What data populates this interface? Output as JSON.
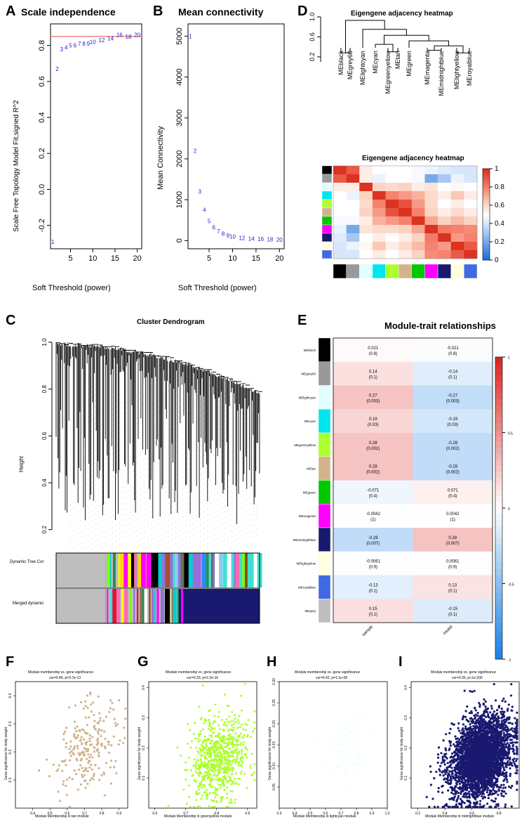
{
  "panels": {
    "A": {
      "label": "A",
      "title": "Scale independence",
      "xlabel": "Soft Threshold (power)",
      "ylabel": "Scale Free Topology Model Fit,signed R^2"
    },
    "B": {
      "label": "B",
      "title": "Mean connectivity",
      "xlabel": "Soft Threshold (power)",
      "ylabel": "Mean Connectivity"
    },
    "C": {
      "label": "C",
      "title": "Cluster Dendrogram",
      "ylabel": "Height",
      "row1": "Dynamic Tree Cut",
      "row2": "Merged dynamic"
    },
    "D": {
      "label": "D",
      "title_dendro": "Eigengene adjacency heatmap",
      "title_heat": "Eigengene adjacency heatmap"
    },
    "E": {
      "label": "E",
      "title": "Module-trait relationships"
    },
    "F": {
      "label": "F",
      "title": "Module membership vs. gene significance",
      "subtitle": "cor=0.46, p=3.7e-13",
      "xlabel": "Module Membership in tan module",
      "ylabel": "Gene significance for body weight"
    },
    "G": {
      "label": "G",
      "title": "Module membership vs. gene significance",
      "subtitle": "cor=0.33, p=2.2e-16",
      "xlabel": "Module Membership in greenyellow module",
      "ylabel": "Gene significance for body weight"
    },
    "H": {
      "label": "H",
      "title": "Module membership vs. gene significance",
      "subtitle": "cor=0.42, p=1.1e-08",
      "xlabel": "Module Membership in lightcyan module",
      "ylabel": "Gene significance for body weight"
    },
    "I": {
      "label": "I",
      "title": "Module membership vs. gene significance",
      "subtitle": "cor=0.35, p<1e-200",
      "xlabel": "Module Membership in midnightblue module",
      "ylabel": "Gene significance for body weight"
    }
  },
  "chart_data": [
    {
      "id": "A",
      "type": "scatter",
      "title": "Scale independence",
      "xlabel": "Soft Threshold (power)",
      "ylabel": "Scale Free Topology Model Fit,signed R^2",
      "x": [
        1,
        2,
        3,
        4,
        5,
        6,
        7,
        8,
        9,
        10,
        12,
        14,
        16,
        18,
        20
      ],
      "y": [
        -0.29,
        0.67,
        0.78,
        0.79,
        0.8,
        0.8,
        0.81,
        0.81,
        0.81,
        0.82,
        0.83,
        0.84,
        0.86,
        0.85,
        0.86
      ],
      "point_labels": [
        "1",
        "2",
        "3",
        "4",
        "5",
        "6",
        "7",
        "8",
        "9",
        "10",
        "12",
        "14",
        "16",
        "18",
        "20"
      ],
      "hline": 0.85,
      "xticks": [
        5,
        10,
        15,
        20
      ],
      "yticks": [
        -0.2,
        0.0,
        0.2,
        0.4,
        0.6,
        0.8
      ],
      "xlim": [
        0.5,
        21
      ],
      "ylim": [
        -0.33,
        0.92
      ]
    },
    {
      "id": "B",
      "type": "scatter",
      "title": "Mean connectivity",
      "xlabel": "Soft Threshold (power)",
      "ylabel": "Mean Connectivity",
      "x": [
        1,
        2,
        3,
        4,
        5,
        6,
        7,
        8,
        9,
        10,
        12,
        14,
        16,
        18,
        20
      ],
      "y": [
        5000,
        2200,
        1200,
        750,
        480,
        320,
        230,
        170,
        130,
        100,
        70,
        50,
        38,
        30,
        25
      ],
      "point_labels": [
        "1",
        "2",
        "3",
        "4",
        "5",
        "6",
        "7",
        "8",
        "9",
        "10",
        "12",
        "14",
        "16",
        "18",
        "20"
      ],
      "xticks": [
        5,
        10,
        15,
        20
      ],
      "yticks": [
        0,
        1000,
        2000,
        3000,
        4000,
        5000
      ],
      "xlim": [
        0.5,
        21
      ],
      "ylim": [
        -200,
        5300
      ]
    },
    {
      "id": "D_dendro",
      "type": "dendrogram",
      "title": "Eigengene adjacency heatmap",
      "leaves": [
        "MEblack",
        "MEgrey60",
        "MElightcyan",
        "MEcyan",
        "MEgreenyellow",
        "MEtan",
        "MEgreen",
        "MEmagenta",
        "MEmidnightblue",
        "MElightyellow",
        "MEroyalblue"
      ],
      "yticks": [
        "0.2",
        "0.6",
        "1.0"
      ]
    },
    {
      "id": "D_heat",
      "type": "heatmap",
      "title": "Eigengene adjacency heatmap",
      "colors": [
        "#000000",
        "#999999",
        "#e0ffff",
        "#00e5ee",
        "#adff2f",
        "#d2b48c",
        "#00c800",
        "#ff00ff",
        "#191970",
        "#ffffe0",
        "#4169e1"
      ],
      "matrix": [
        [
          1.0,
          0.9,
          0.55,
          0.5,
          0.5,
          0.5,
          0.48,
          0.45,
          0.42,
          0.4,
          0.4
        ],
        [
          0.9,
          1.0,
          0.55,
          0.45,
          0.5,
          0.5,
          0.48,
          0.2,
          0.3,
          0.45,
          0.4
        ],
        [
          0.55,
          0.55,
          1.0,
          0.62,
          0.6,
          0.62,
          0.55,
          0.58,
          0.5,
          0.52,
          0.5
        ],
        [
          0.5,
          0.45,
          0.62,
          1.0,
          0.8,
          0.75,
          0.7,
          0.6,
          0.55,
          0.65,
          0.55
        ],
        [
          0.5,
          0.5,
          0.6,
          0.8,
          1.0,
          0.92,
          0.75,
          0.6,
          0.5,
          0.55,
          0.5
        ],
        [
          0.5,
          0.5,
          0.62,
          0.75,
          0.92,
          1.0,
          0.8,
          0.62,
          0.55,
          0.6,
          0.55
        ],
        [
          0.48,
          0.48,
          0.55,
          0.7,
          0.75,
          0.8,
          1.0,
          0.72,
          0.62,
          0.68,
          0.62
        ],
        [
          0.45,
          0.2,
          0.58,
          0.6,
          0.6,
          0.62,
          0.72,
          1.0,
          0.82,
          0.8,
          0.78
        ],
        [
          0.42,
          0.3,
          0.5,
          0.55,
          0.5,
          0.55,
          0.62,
          0.82,
          1.0,
          0.75,
          0.8
        ],
        [
          0.4,
          0.45,
          0.52,
          0.65,
          0.55,
          0.6,
          0.68,
          0.8,
          0.75,
          1.0,
          0.9
        ],
        [
          0.4,
          0.4,
          0.5,
          0.55,
          0.5,
          0.55,
          0.62,
          0.78,
          0.8,
          0.9,
          1.0
        ]
      ],
      "colorbar_ticks": [
        "0",
        "0.2",
        "0.4",
        "0.6",
        "0.8",
        "1"
      ]
    },
    {
      "id": "C",
      "type": "dendrogram",
      "title": "Cluster Dendrogram",
      "ylabel": "Height",
      "yticks": [
        "0.2",
        "0.4",
        "0.6",
        "0.8",
        "1.0"
      ],
      "rows": [
        "Dynamic Tree Cut",
        "Merged dynamic"
      ]
    },
    {
      "id": "E",
      "type": "heatmap",
      "title": "Module-trait relationships",
      "rows": [
        "MEblack",
        "MEgrey60",
        "MElightcyan",
        "MEcyan",
        "MEgreenyellow",
        "MEtan",
        "MEgreen",
        "MEmagenta",
        "MEmidnightblue",
        "MElightyellow",
        "MEroyalblue",
        "MEgrey"
      ],
      "row_colors": [
        "#000000",
        "#999999",
        "#e0ffff",
        "#00e5ee",
        "#adff2f",
        "#d2b48c",
        "#00c800",
        "#ff00ff",
        "#191970",
        "#ffffe0",
        "#4169e1",
        "#bebebe"
      ],
      "columns": [
        "sample",
        "model"
      ],
      "values": [
        [
          0.021,
          -0.021
        ],
        [
          0.14,
          -0.14
        ],
        [
          0.27,
          -0.27
        ],
        [
          0.19,
          -0.19
        ],
        [
          0.28,
          -0.28
        ],
        [
          0.28,
          -0.28
        ],
        [
          -0.071,
          0.071
        ],
        [
          -0.0042,
          0.0042
        ],
        [
          -0.28,
          0.28
        ],
        [
          -0.0061,
          0.0061
        ],
        [
          -0.13,
          0.13
        ],
        [
          0.15,
          -0.15
        ]
      ],
      "pvalues": [
        [
          "(0.8)",
          "(0.8)"
        ],
        [
          "(0.1)",
          "(0.1)"
        ],
        [
          "(0.003)",
          "(0.003)"
        ],
        [
          "(0.03)",
          "(0.03)"
        ],
        [
          "(0.002)",
          "(0.002)"
        ],
        [
          "(0.002)",
          "(0.002)"
        ],
        [
          "(0.4)",
          "(0.4)"
        ],
        [
          "(1)",
          "(1)"
        ],
        [
          "(0.007)",
          "(0.007)"
        ],
        [
          "(0.9)",
          "(0.9)"
        ],
        [
          "(0.1)",
          "(0.1)"
        ],
        [
          "(0.1)",
          "(0.1)"
        ]
      ],
      "colorbar_ticks": [
        "1",
        "0.5",
        "0",
        "-0.5",
        "-1"
      ]
    },
    {
      "id": "F",
      "type": "scatter",
      "color": "#d2b48c",
      "n": 230,
      "xlim": [
        0.3,
        0.95
      ],
      "ylim": [
        0,
        0.45
      ],
      "cor": 0.46,
      "xticks": [
        "0.4",
        "0.5",
        "0.6",
        "0.7",
        "0.8",
        "0.9"
      ],
      "yticks": [
        "0.1",
        "0.2",
        "0.3",
        "0.4"
      ]
    },
    {
      "id": "G",
      "type": "scatter",
      "color": "#adff2f",
      "n": 750,
      "xlim": [
        0.58,
        0.93
      ],
      "ylim": [
        0,
        0.42
      ],
      "cor": 0.33,
      "xticks": [
        "0.6",
        "0.7",
        "0.8",
        "0.9"
      ],
      "yticks": [
        "0.1",
        "0.2",
        "0.3",
        "0.4"
      ]
    },
    {
      "id": "H",
      "type": "scatter",
      "color": "#e0ffff",
      "n": 120,
      "xlim": [
        0.3,
        1.0
      ],
      "ylim": [
        0,
        0.3
      ],
      "cor": 0.42,
      "xticks": [
        "0.3",
        "0.4",
        "0.5",
        "0.6",
        "0.7",
        "0.8",
        "0.9",
        "1.0"
      ],
      "yticks": [
        "0.05",
        "0.10",
        "0.15",
        "0.20",
        "0.25",
        "0.30"
      ]
    },
    {
      "id": "I",
      "type": "scatter",
      "color": "#191970",
      "n": 3500,
      "xlim": [
        0.15,
        0.95
      ],
      "ylim": [
        0,
        0.42
      ],
      "cor": 0.35,
      "xticks": [
        "0.2",
        "0.4",
        "0.6",
        "0.8"
      ],
      "yticks": [
        "0.1",
        "0.2",
        "0.3",
        "0.4"
      ]
    }
  ]
}
